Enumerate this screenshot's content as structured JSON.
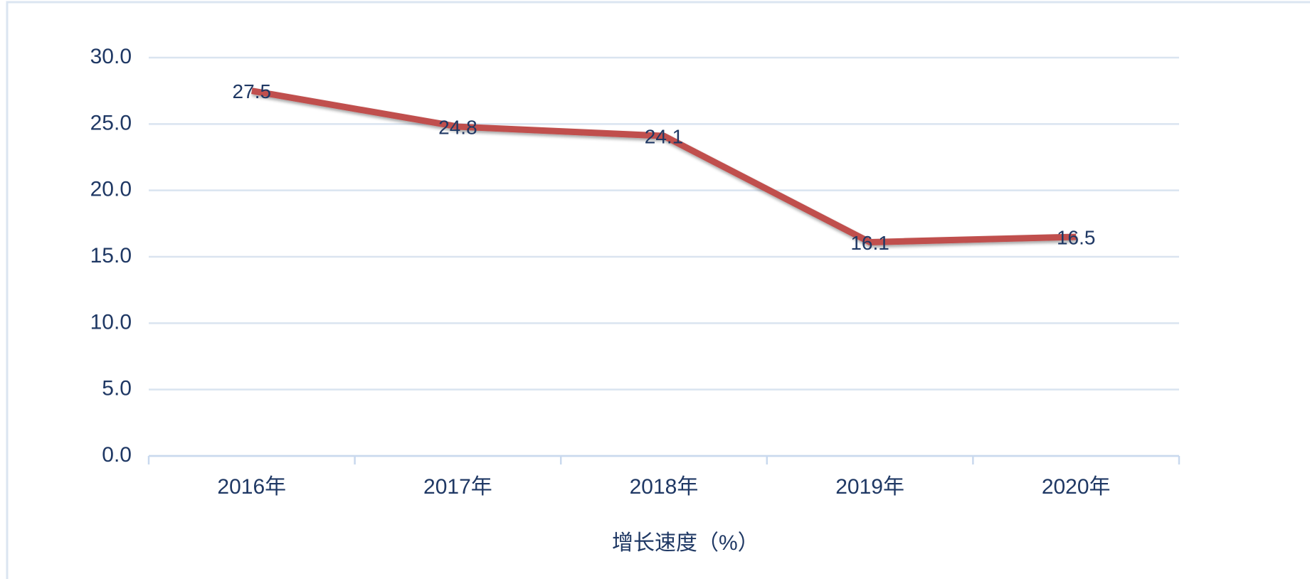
{
  "chart_data": {
    "type": "line",
    "categories": [
      "2016年",
      "2017年",
      "2018年",
      "2019年",
      "2020年"
    ],
    "series": [
      {
        "name": "增长速度（%）",
        "color": "#c0504d",
        "values": [
          27.5,
          24.8,
          24.1,
          16.1,
          16.5
        ]
      }
    ],
    "ylim": [
      0,
      30
    ],
    "yticks": [
      {
        "value": 0,
        "label": "0.0"
      },
      {
        "value": 5,
        "label": "5.0"
      },
      {
        "value": 10,
        "label": "10.0"
      },
      {
        "value": 15,
        "label": "15.0"
      },
      {
        "value": 20,
        "label": "20.0"
      },
      {
        "value": 25,
        "label": "25.0"
      },
      {
        "value": 30,
        "label": "30.0"
      }
    ],
    "grid": true,
    "legend": "bottom"
  }
}
